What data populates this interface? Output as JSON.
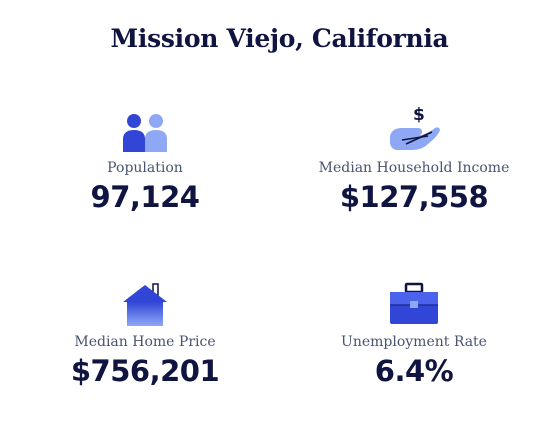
{
  "title": "Mission Viejo, California",
  "stats": {
    "population": {
      "label": "Population",
      "value": "97,124",
      "icon": "people-icon"
    },
    "income": {
      "label": "Median Household Income",
      "value": "$127,558",
      "icon": "hand-dollar-icon"
    },
    "home_price": {
      "label": "Median Home Price",
      "value": "$756,201",
      "icon": "house-icon"
    },
    "unemployment": {
      "label": "Unemployment Rate",
      "value": "6.4%",
      "icon": "briefcase-icon"
    }
  },
  "colors": {
    "title": "#0f1440",
    "label": "#4a5370",
    "icon_dark": "#3146d6",
    "icon_light": "#8fa8f5"
  }
}
